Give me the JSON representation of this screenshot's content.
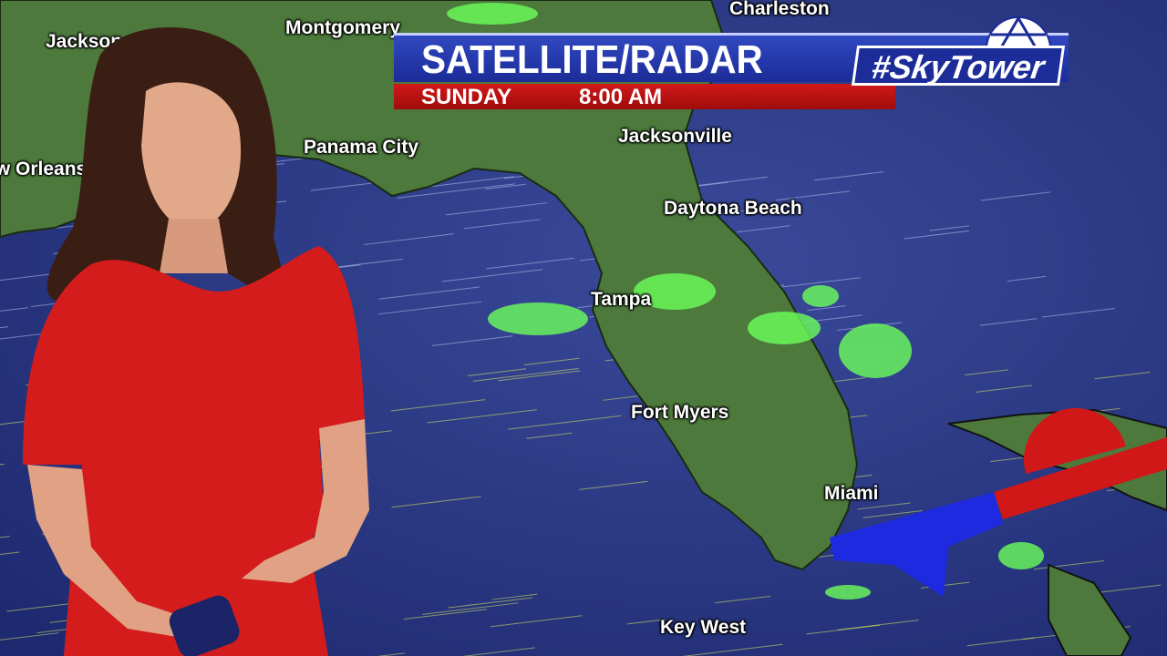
{
  "broadcast": {
    "title": "SATELLITE/RADAR",
    "day": "SUNDAY",
    "time": "8:00 AM",
    "logo_text": "#SkyTower",
    "colors": {
      "title_bar": "#1c2c98",
      "sub_bar": "#c01010",
      "ocean": "#24307a",
      "land": "#4f7a3e",
      "radar": "#6cff5a"
    }
  },
  "map": {
    "cities": [
      {
        "name": "Montgomery"
      },
      {
        "name": "Charleston"
      },
      {
        "name": "Jackson"
      },
      {
        "name": "New Orleans"
      },
      {
        "name": "Panama City"
      },
      {
        "name": "Jacksonville"
      },
      {
        "name": "Daytona Beach"
      },
      {
        "name": "Tampa"
      },
      {
        "name": "Fort Myers"
      },
      {
        "name": "Miami"
      },
      {
        "name": "Key West"
      }
    ]
  }
}
